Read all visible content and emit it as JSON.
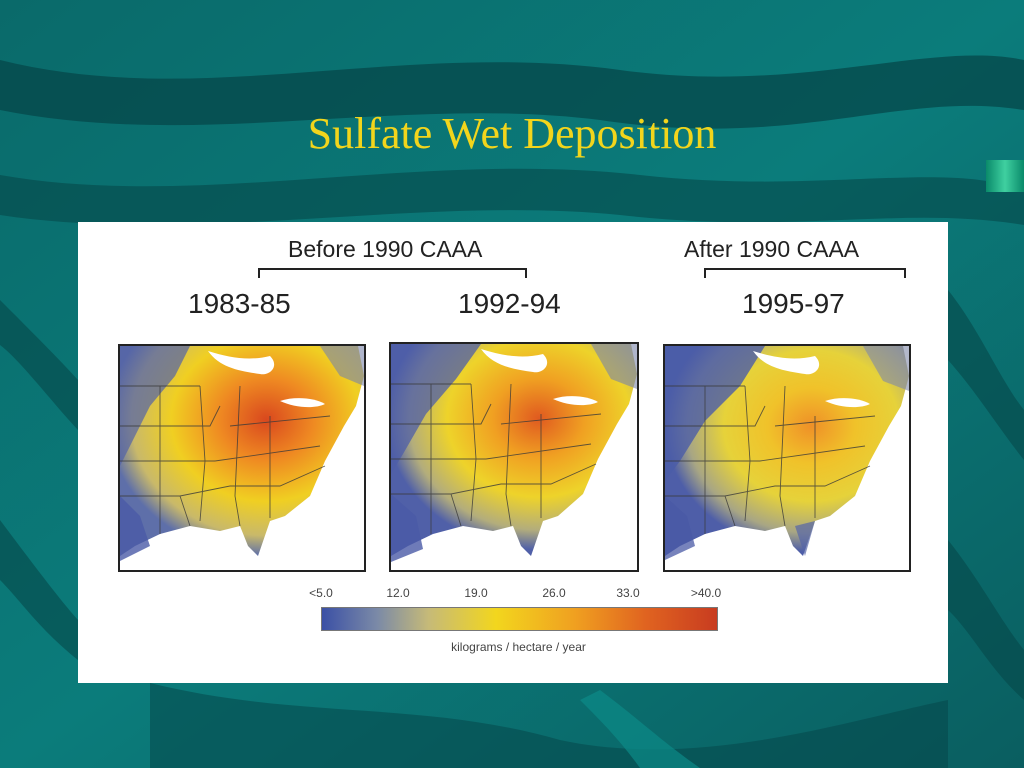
{
  "slide": {
    "title": "Sulfate Wet Deposition",
    "background_color": "#0b5f60",
    "title_color": "#f2d51c"
  },
  "figure": {
    "group_labels": [
      "Before 1990 CAAA",
      "After 1990 CAAA"
    ],
    "periods": [
      "1983-85",
      "1992-94",
      "1995-97"
    ],
    "legend": {
      "ticks": [
        "<5.0",
        "12.0",
        "19.0",
        "26.0",
        "33.0",
        ">40.0"
      ],
      "units": "kilograms / hectare / year",
      "colors": [
        "#3b50a5",
        "#7b8aa7",
        "#c6ba78",
        "#f2d61e",
        "#f0a020",
        "#e06320",
        "#c83c20"
      ]
    }
  }
}
